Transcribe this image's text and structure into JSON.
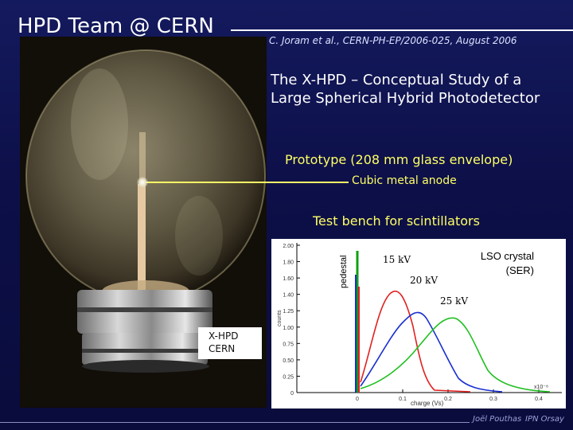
{
  "header": {
    "title": "HPD Team @ CERN",
    "citation": "C. Joram et al., CERN-PH-EP/2006-025, August 2006"
  },
  "paper_title": {
    "line1": "The X-HPD – Conceptual Study of a",
    "line2": "Large Spherical Hybrid Photodetector"
  },
  "annotations": {
    "prototype": "Prototype  (208 mm glass envelope)",
    "anode": "Cubic metal anode",
    "test_bench": "Test bench for scintillators"
  },
  "photo": {
    "label_line1": "X-HPD",
    "label_line2": "CERN"
  },
  "plot": {
    "legend_line1": "LSO crystal",
    "legend_line2": "(SER)",
    "pedestal": "pedestal",
    "curve_labels": [
      "15 kV",
      "20 kV",
      "25 kV"
    ],
    "y_label": "counts",
    "x_label": "charge (Vs)",
    "x_exponent": "x10⁻⁸",
    "y_ticks": [
      "2.00",
      "1.80",
      "1.60",
      "1.40",
      "1.25",
      "1.00",
      "0.75",
      "0.50",
      "0.25",
      "0"
    ],
    "x_ticks": [
      "0",
      "0.1",
      "0.2",
      "0.3",
      "0.4"
    ],
    "colors": {
      "kv15": "#e02020",
      "kv20": "#1a2fd0",
      "kv25": "#20c020",
      "pedestal": "#10a010"
    }
  },
  "footer": {
    "author": "Joël Pouthas",
    "institute": "IPN Orsay"
  }
}
